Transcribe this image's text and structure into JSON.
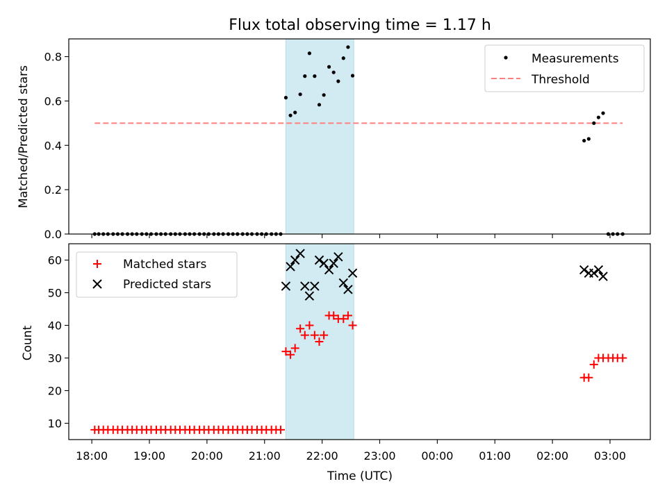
{
  "chart_data": [
    {
      "type": "scatter",
      "title": "Flux total observing time = 1.17 h",
      "xlabel": "",
      "ylabel": "Matched/Predicted stars",
      "ylim": [
        0,
        0.88
      ],
      "yticks": [
        0.0,
        0.2,
        0.4,
        0.6,
        0.8
      ],
      "ytick_labels": [
        "0.0",
        "0.2",
        "0.4",
        "0.6",
        "0.8"
      ],
      "grid": false,
      "legend_position": "top-right",
      "shaded_interval_hours": [
        21.37,
        22.55
      ],
      "shade_color": "#add8e6",
      "series": [
        {
          "name": "Measurements",
          "color": "#000000",
          "marker": "dot",
          "points": [
            [
              18.05,
              0
            ],
            [
              18.12,
              0
            ],
            [
              18.2,
              0
            ],
            [
              18.28,
              0
            ],
            [
              18.37,
              0
            ],
            [
              18.45,
              0
            ],
            [
              18.53,
              0
            ],
            [
              18.62,
              0
            ],
            [
              18.7,
              0
            ],
            [
              18.78,
              0
            ],
            [
              18.87,
              0
            ],
            [
              18.95,
              0
            ],
            [
              19.03,
              0
            ],
            [
              19.12,
              0
            ],
            [
              19.2,
              0
            ],
            [
              19.28,
              0
            ],
            [
              19.37,
              0
            ],
            [
              19.45,
              0
            ],
            [
              19.53,
              0
            ],
            [
              19.62,
              0
            ],
            [
              19.7,
              0
            ],
            [
              19.78,
              0
            ],
            [
              19.87,
              0
            ],
            [
              19.95,
              0
            ],
            [
              20.03,
              0
            ],
            [
              20.12,
              0
            ],
            [
              20.2,
              0
            ],
            [
              20.28,
              0
            ],
            [
              20.37,
              0
            ],
            [
              20.45,
              0
            ],
            [
              20.53,
              0
            ],
            [
              20.62,
              0
            ],
            [
              20.7,
              0
            ],
            [
              20.78,
              0
            ],
            [
              20.87,
              0
            ],
            [
              20.95,
              0
            ],
            [
              21.03,
              0
            ],
            [
              21.12,
              0
            ],
            [
              21.2,
              0
            ],
            [
              21.28,
              0
            ],
            [
              21.37,
              0.615
            ],
            [
              21.45,
              0.535
            ],
            [
              21.53,
              0.548
            ],
            [
              21.62,
              0.63
            ],
            [
              21.7,
              0.712
            ],
            [
              21.78,
              0.815
            ],
            [
              21.87,
              0.712
            ],
            [
              21.95,
              0.583
            ],
            [
              22.03,
              0.627
            ],
            [
              22.12,
              0.754
            ],
            [
              22.2,
              0.729
            ],
            [
              22.28,
              0.689
            ],
            [
              22.37,
              0.793
            ],
            [
              22.45,
              0.843
            ],
            [
              22.53,
              0.714
            ],
            [
              26.55,
              0.421
            ],
            [
              26.63,
              0.429
            ],
            [
              26.72,
              0.5
            ],
            [
              26.8,
              0.526
            ],
            [
              26.88,
              0.545
            ],
            [
              26.97,
              0
            ],
            [
              27.05,
              0
            ],
            [
              27.13,
              0
            ],
            [
              27.22,
              0
            ]
          ]
        },
        {
          "name": "Threshold",
          "color": "#ff7f7f",
          "style": "dashed",
          "value": 0.5,
          "x_range": [
            18.05,
            27.22
          ]
        }
      ]
    },
    {
      "type": "scatter",
      "title": "",
      "xlabel": "Time (UTC)",
      "ylabel": "Count",
      "ylim": [
        5,
        65
      ],
      "yticks": [
        10,
        20,
        30,
        40,
        50,
        60
      ],
      "ytick_labels": [
        "10",
        "20",
        "30",
        "40",
        "50",
        "60"
      ],
      "xlim": [
        17.6,
        27.7
      ],
      "xticks": [
        18,
        19,
        20,
        21,
        22,
        23,
        24,
        25,
        26,
        27
      ],
      "xtick_labels": [
        "18:00",
        "19:00",
        "20:00",
        "21:00",
        "22:00",
        "23:00",
        "00:00",
        "01:00",
        "02:00",
        "03:00"
      ],
      "grid": false,
      "legend_position": "top-left",
      "shaded_interval_hours": [
        21.37,
        22.55
      ],
      "shade_color": "#add8e6",
      "series": [
        {
          "name": "Matched stars",
          "color": "#ff0000",
          "marker": "plus",
          "points": [
            [
              18.05,
              8
            ],
            [
              18.12,
              8
            ],
            [
              18.2,
              8
            ],
            [
              18.28,
              8
            ],
            [
              18.37,
              8
            ],
            [
              18.45,
              8
            ],
            [
              18.53,
              8
            ],
            [
              18.62,
              8
            ],
            [
              18.7,
              8
            ],
            [
              18.78,
              8
            ],
            [
              18.87,
              8
            ],
            [
              18.95,
              8
            ],
            [
              19.03,
              8
            ],
            [
              19.12,
              8
            ],
            [
              19.2,
              8
            ],
            [
              19.28,
              8
            ],
            [
              19.37,
              8
            ],
            [
              19.45,
              8
            ],
            [
              19.53,
              8
            ],
            [
              19.62,
              8
            ],
            [
              19.7,
              8
            ],
            [
              19.78,
              8
            ],
            [
              19.87,
              8
            ],
            [
              19.95,
              8
            ],
            [
              20.03,
              8
            ],
            [
              20.12,
              8
            ],
            [
              20.2,
              8
            ],
            [
              20.28,
              8
            ],
            [
              20.37,
              8
            ],
            [
              20.45,
              8
            ],
            [
              20.53,
              8
            ],
            [
              20.62,
              8
            ],
            [
              20.7,
              8
            ],
            [
              20.78,
              8
            ],
            [
              20.87,
              8
            ],
            [
              20.95,
              8
            ],
            [
              21.03,
              8
            ],
            [
              21.12,
              8
            ],
            [
              21.2,
              8
            ],
            [
              21.28,
              8
            ],
            [
              21.37,
              32
            ],
            [
              21.45,
              31
            ],
            [
              21.53,
              33
            ],
            [
              21.62,
              39
            ],
            [
              21.7,
              37
            ],
            [
              21.78,
              40
            ],
            [
              21.87,
              37
            ],
            [
              21.95,
              35
            ],
            [
              22.03,
              37
            ],
            [
              22.12,
              43
            ],
            [
              22.2,
              43
            ],
            [
              22.28,
              42
            ],
            [
              22.37,
              42
            ],
            [
              22.45,
              43
            ],
            [
              22.53,
              40
            ],
            [
              26.55,
              24
            ],
            [
              26.63,
              24
            ],
            [
              26.72,
              28
            ],
            [
              26.8,
              30
            ],
            [
              26.88,
              30
            ],
            [
              26.97,
              30
            ],
            [
              27.05,
              30
            ],
            [
              27.13,
              30
            ],
            [
              27.22,
              30
            ]
          ]
        },
        {
          "name": "Predicted stars",
          "color": "#000000",
          "marker": "x",
          "points": [
            [
              21.37,
              52
            ],
            [
              21.45,
              58
            ],
            [
              21.53,
              60
            ],
            [
              21.62,
              62
            ],
            [
              21.7,
              52
            ],
            [
              21.78,
              49
            ],
            [
              21.87,
              52
            ],
            [
              21.95,
              60
            ],
            [
              22.03,
              59
            ],
            [
              22.12,
              57
            ],
            [
              22.2,
              59
            ],
            [
              22.28,
              61
            ],
            [
              22.37,
              53
            ],
            [
              22.45,
              51
            ],
            [
              22.53,
              56
            ],
            [
              26.55,
              57
            ],
            [
              26.63,
              56
            ],
            [
              26.72,
              56
            ],
            [
              26.8,
              57
            ],
            [
              26.88,
              55
            ]
          ]
        }
      ]
    }
  ]
}
